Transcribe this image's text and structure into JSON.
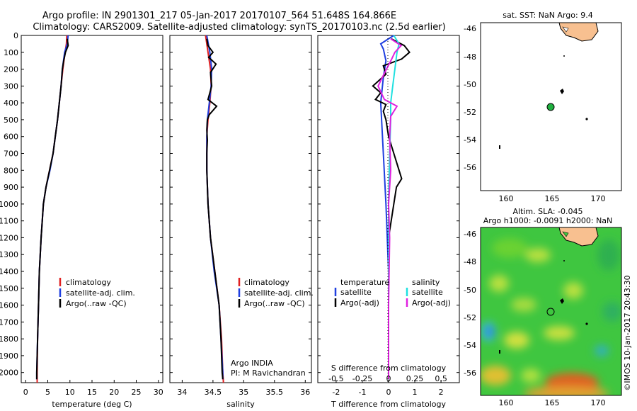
{
  "title_line1": "Argo profile: IN 2901301_217 05-Jan-2017 20170107_564 51.648S 164.866E",
  "title_line2": "Climatology: CARS2009. Satellite-adjusted climatology: synTS_20170103.nc (2.5d earlier)",
  "colors": {
    "climatology": "#e02020",
    "satellite": "#1f3fe0",
    "argo": "#000000",
    "sal_satellite": "#1fe0e0",
    "sal_argo": "#e020e0",
    "land": "#f8c090"
  },
  "depth_ticks": [
    "0",
    "100",
    "200",
    "300",
    "400",
    "500",
    "600",
    "700",
    "800",
    "900",
    "1000",
    "1100",
    "1200",
    "1300",
    "1400",
    "1500",
    "1600",
    "1700",
    "1800",
    "1900",
    "2000"
  ],
  "panel_temp": {
    "xlabel": "temperature (deg C)",
    "xticks": [
      "0",
      "5",
      "10",
      "15",
      "20",
      "25",
      "30"
    ],
    "legend": [
      "climatology",
      "satellite-adj. clim.",
      "Argo(..raw -QC)"
    ]
  },
  "panel_sal": {
    "xlabel": "salinity",
    "xticks": [
      "34",
      "34.5",
      "35",
      "35.5",
      "36"
    ],
    "legend": [
      "climatology",
      "satellite-adj. clim.",
      "Argo(..raw -QC)"
    ],
    "note1": "Argo INDIA",
    "note2": "PI: M Ravichandran"
  },
  "panel_diff": {
    "xlabel": "T difference from climatology",
    "top_label": "S difference from climatology",
    "xticks_t": [
      "-2",
      "-1",
      "0",
      "1",
      "2"
    ],
    "xticks_s": [
      "-0.5",
      "-0.25",
      "0",
      "0.25",
      "0.5"
    ],
    "legend_t_title": "temperature",
    "legend_s_title": "salinity",
    "legend_t": [
      "satellite",
      "Argo(-adj)"
    ],
    "legend_s": [
      "satellite",
      "Argo(-adj)"
    ]
  },
  "map_sst": {
    "title": "sat. SST: NaN Argo: 9.4",
    "xticks": [
      "160",
      "165",
      "170"
    ],
    "yticks": [
      "-46",
      "-48",
      "-50",
      "-52",
      "-54",
      "-56"
    ]
  },
  "map_sla": {
    "title1": "Altim. SLA: -0.045",
    "title2": "Argo h1000: -0.0091 h2000: NaN",
    "xticks": [
      "160",
      "165",
      "170"
    ],
    "yticks": [
      "-46",
      "-48",
      "-50",
      "-52",
      "-54",
      "-56"
    ]
  },
  "credit": "©IMOS 10-Jan-2017 20:43:30",
  "chart_data": [
    {
      "type": "line",
      "xlabel": "temperature (deg C)",
      "ylabel": "",
      "xlim": [
        -1,
        31
      ],
      "ylim": [
        2060,
        0
      ],
      "series": [
        {
          "name": "climatology",
          "depth": [
            0,
            50,
            100,
            200,
            300,
            400,
            500,
            600,
            700,
            800,
            900,
            1000,
            1200,
            1400,
            1600,
            1800,
            2000,
            2060
          ],
          "values": [
            9.3,
            9.2,
            8.9,
            8.4,
            8.0,
            7.6,
            7.2,
            6.7,
            6.2,
            5.4,
            4.6,
            4.0,
            3.5,
            3.1,
            2.9,
            2.7,
            2.6,
            2.6
          ]
        },
        {
          "name": "satellite-adj. clim.",
          "depth": [
            0,
            50,
            100,
            200,
            300,
            400,
            500,
            600,
            700,
            800,
            900,
            1000,
            1200,
            1400,
            1600,
            1800,
            2000,
            2040
          ],
          "values": [
            9.6,
            9.4,
            8.8,
            8.3,
            8.0,
            7.6,
            7.2,
            6.7,
            6.2,
            5.5,
            4.6,
            4.0,
            3.5,
            3.1,
            2.9,
            2.7,
            2.5,
            2.5
          ]
        },
        {
          "name": "Argo(..raw -QC)",
          "depth": [
            20,
            60,
            100,
            150,
            200,
            300,
            400,
            500,
            600,
            700,
            800,
            900,
            1000,
            1200,
            1400,
            1600,
            1800,
            2000,
            2040
          ],
          "values": [
            9.4,
            9.6,
            9.0,
            8.6,
            8.3,
            8.0,
            7.6,
            7.2,
            6.7,
            6.2,
            5.4,
            4.6,
            4.0,
            3.5,
            3.1,
            2.9,
            2.7,
            2.5,
            2.5
          ]
        }
      ]
    },
    {
      "type": "line",
      "xlabel": "salinity",
      "ylabel": "",
      "xlim": [
        33.8,
        36.1
      ],
      "ylim": [
        2060,
        0
      ],
      "series": [
        {
          "name": "climatology",
          "depth": [
            0,
            100,
            200,
            300,
            400,
            500,
            600,
            800,
            1000,
            1200,
            1400,
            1600,
            1800,
            2000,
            2060
          ],
          "values": [
            34.38,
            34.42,
            34.46,
            34.47,
            34.45,
            34.42,
            34.4,
            34.4,
            34.42,
            34.46,
            34.53,
            34.6,
            34.64,
            34.66,
            34.67
          ]
        },
        {
          "name": "satellite-adj. clim.",
          "depth": [
            0,
            100,
            200,
            300,
            400,
            500,
            600,
            800,
            1000,
            1200,
            1400,
            1600,
            1800,
            2000,
            2040
          ],
          "values": [
            34.4,
            34.45,
            34.48,
            34.47,
            34.44,
            34.41,
            34.4,
            34.4,
            34.42,
            34.46,
            34.52,
            34.6,
            34.63,
            34.66,
            34.66
          ]
        },
        {
          "name": "Argo(..raw -QC)",
          "depth": [
            20,
            60,
            100,
            130,
            170,
            220,
            300,
            380,
            420,
            470,
            500,
            560,
            620,
            700,
            800,
            1000,
            1200,
            1400,
            1600,
            1800,
            2000,
            2040
          ],
          "values": [
            34.4,
            34.42,
            34.5,
            34.43,
            34.55,
            34.46,
            34.48,
            34.42,
            34.56,
            34.44,
            34.41,
            34.4,
            34.41,
            34.4,
            34.4,
            34.42,
            34.46,
            34.53,
            34.6,
            34.63,
            34.65,
            34.66
          ]
        }
      ]
    },
    {
      "type": "line",
      "xlabel": "T difference from climatology",
      "ylabel": "",
      "xlim": [
        -2.7,
        2.7
      ],
      "ylim": [
        2060,
        0
      ],
      "series": [
        {
          "name": "temperature satellite",
          "depth": [
            0,
            50,
            80,
            150,
            250,
            400,
            700,
            1000,
            1400,
            1800,
            2040
          ],
          "values": [
            0.2,
            -0.3,
            -0.2,
            -0.1,
            -0.2,
            -0.3,
            -0.2,
            -0.1,
            0,
            0,
            0
          ]
        },
        {
          "name": "temperature Argo(-adj)",
          "depth": [
            20,
            60,
            100,
            140,
            180,
            230,
            300,
            340,
            380,
            410,
            450,
            500,
            600,
            700,
            800,
            850,
            900,
            1000,
            1100,
            1200,
            1400,
            1600,
            1800,
            2040
          ],
          "values": [
            0.1,
            0.6,
            0.8,
            0.5,
            -0.2,
            -0.1,
            -0.6,
            -0.3,
            -0.5,
            -0.1,
            -0.2,
            -0.1,
            0,
            0.2,
            0.4,
            0.5,
            0.3,
            0.2,
            0.1,
            0,
            0,
            0,
            0,
            0
          ]
        },
        {
          "name": "salinity satellite",
          "depth": [
            0,
            50,
            100,
            200,
            300,
            400,
            500,
            700,
            1000,
            1400,
            1800,
            2040
          ],
          "values": [
            0.05,
            0.1,
            0.08,
            0.06,
            0.04,
            0.02,
            0.02,
            0.01,
            0,
            0,
            0,
            0
          ]
        },
        {
          "name": "salinity Argo(-adj)",
          "depth": [
            20,
            60,
            100,
            140,
            200,
            300,
            380,
            420,
            480,
            600,
            800,
            1000,
            1200,
            1600,
            2040
          ],
          "values": [
            0.02,
            0.12,
            0.06,
            0.03,
            -0.02,
            -0.1,
            -0.04,
            0.08,
            0.02,
            0.01,
            0.02,
            0.0,
            0.01,
            0,
            0
          ]
        }
      ]
    }
  ]
}
